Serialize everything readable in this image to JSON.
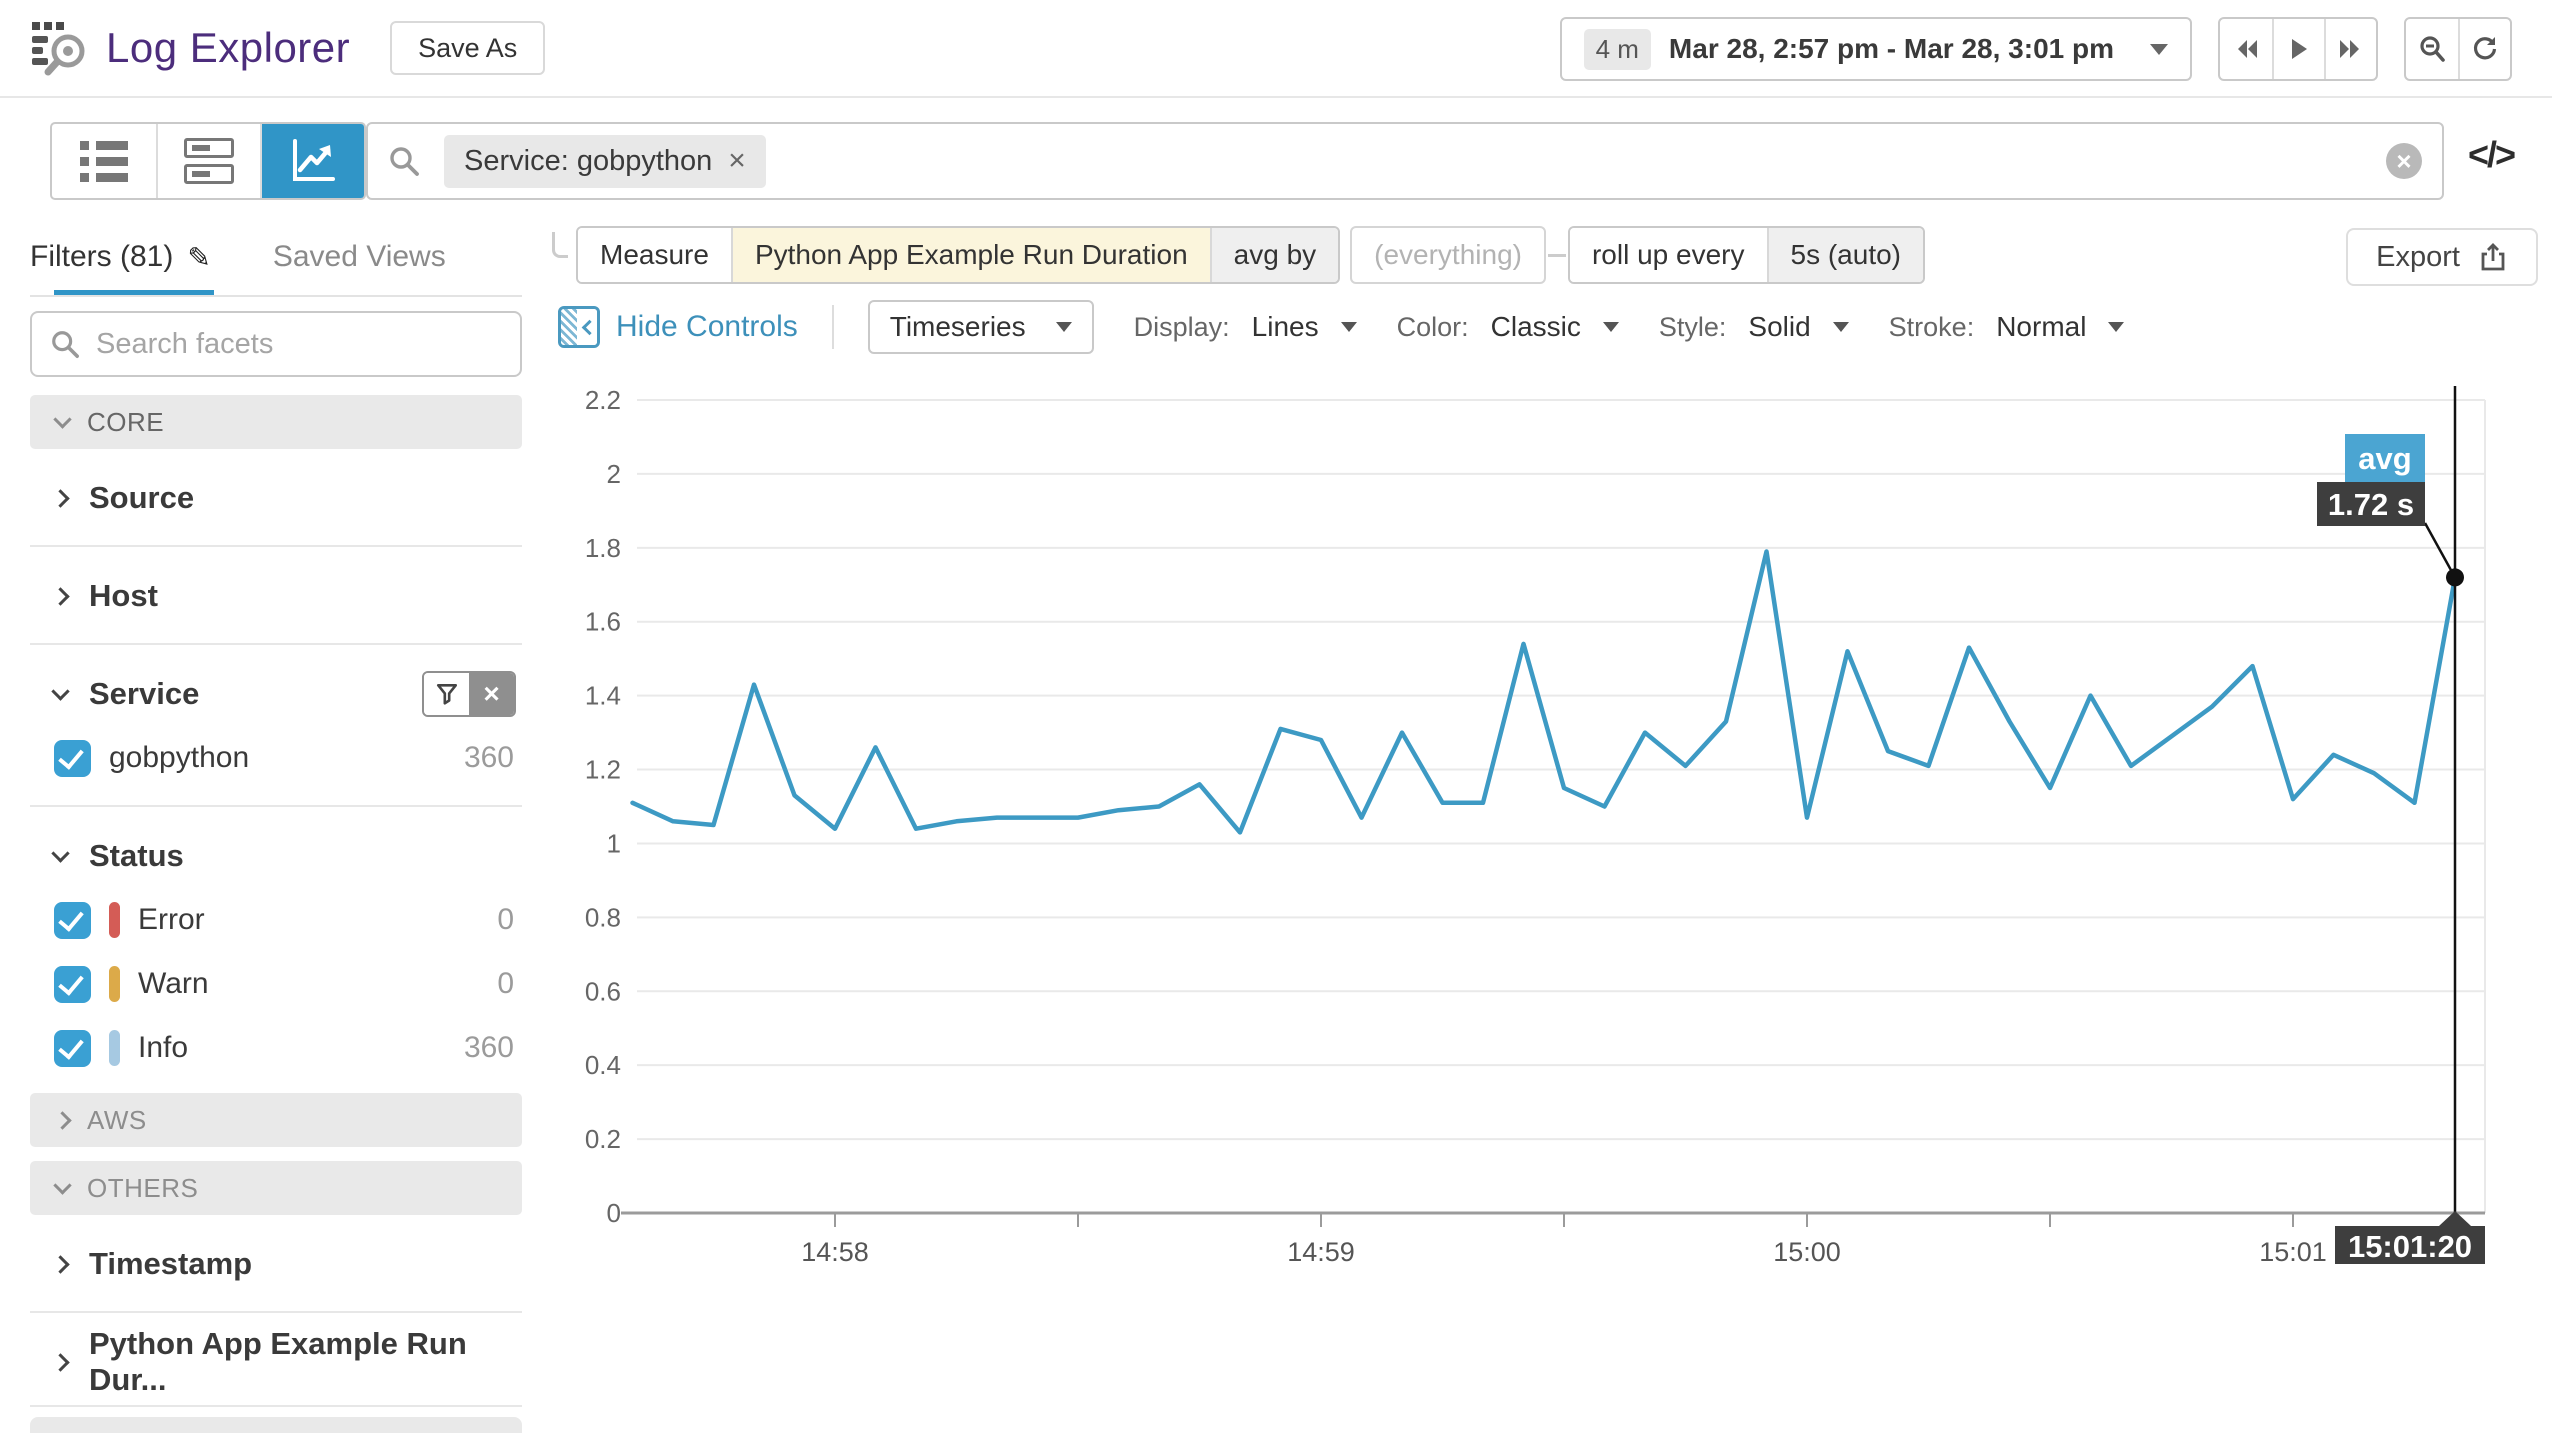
{
  "header": {
    "title": "Log Explorer",
    "save_as_label": "Save As",
    "time_range": {
      "duration_badge": "4 m",
      "range_label": "Mar 28, 2:57 pm - Mar 28, 3:01 pm"
    }
  },
  "search": {
    "filter_tag": "Service: gobpython",
    "remove_tag_icon": "×",
    "code_toggle": "</>"
  },
  "query_row": {
    "measure_label": "Measure",
    "measure_value": "Python App Example Run Duration",
    "agg_label": "avg by",
    "agg_value": "(everything)",
    "rollup_label": "roll up every",
    "rollup_value": "5s (auto)",
    "export_label": "Export"
  },
  "controls_row": {
    "hide_controls_label": "Hide Controls",
    "chart_type_value": "Timeseries",
    "display_label": "Display:",
    "display_value": "Lines",
    "color_label": "Color:",
    "color_value": "Classic",
    "style_label": "Style:",
    "style_value": "Solid",
    "stroke_label": "Stroke:",
    "stroke_value": "Normal"
  },
  "sidebar": {
    "tabs": {
      "filters_label": "Filters (81)",
      "saved_views_label": "Saved Views"
    },
    "facet_search_placeholder": "Search facets",
    "core_header": "CORE",
    "facets": {
      "source_label": "Source",
      "host_label": "Host",
      "service_label": "Service",
      "service_items": [
        {
          "label": "gobpython",
          "count": "360",
          "checked": true
        }
      ],
      "status_label": "Status",
      "status_items": [
        {
          "label": "Error",
          "count": "0",
          "color": "#d45c56",
          "checked": true
        },
        {
          "label": "Warn",
          "count": "0",
          "color": "#dcaa49",
          "checked": true
        },
        {
          "label": "Info",
          "count": "360",
          "color": "#a6c9e2",
          "checked": true
        }
      ],
      "aws_header": "AWS",
      "others_header": "OTHERS",
      "timestamp_label": "Timestamp",
      "duration_label": "Python App Example Run Dur..."
    }
  },
  "chart_data": {
    "type": "line",
    "series_name": "avg of Python App Example Run Duration",
    "unit": "s",
    "x_interval_seconds": 5,
    "x_times": [
      "14:57:35",
      "14:57:40",
      "14:57:45",
      "14:57:50",
      "14:57:55",
      "14:58:00",
      "14:58:05",
      "14:58:10",
      "14:58:15",
      "14:58:20",
      "14:58:25",
      "14:58:30",
      "14:58:35",
      "14:58:40",
      "14:58:45",
      "14:58:50",
      "14:58:55",
      "14:59:00",
      "14:59:05",
      "14:59:10",
      "14:59:15",
      "14:59:20",
      "14:59:25",
      "14:59:30",
      "14:59:35",
      "14:59:40",
      "14:59:45",
      "14:59:50",
      "14:59:55",
      "15:00:00",
      "15:00:05",
      "15:00:10",
      "15:00:15",
      "15:00:20",
      "15:00:25",
      "15:00:30",
      "15:00:35",
      "15:00:40",
      "15:00:45",
      "15:00:50",
      "15:00:55",
      "15:01:00",
      "15:01:05",
      "15:01:10",
      "15:01:15",
      "15:01:20"
    ],
    "values": [
      1.11,
      1.06,
      1.05,
      1.43,
      1.13,
      1.04,
      1.26,
      1.04,
      1.06,
      1.07,
      1.07,
      1.07,
      1.09,
      1.1,
      1.16,
      1.03,
      1.31,
      1.28,
      1.07,
      1.3,
      1.11,
      1.11,
      1.54,
      1.15,
      1.1,
      1.3,
      1.21,
      1.33,
      1.79,
      1.07,
      1.52,
      1.25,
      1.21,
      1.53,
      1.33,
      1.15,
      1.4,
      1.21,
      1.29,
      1.37,
      1.48,
      1.12,
      1.24,
      1.19,
      1.11,
      1.72
    ],
    "x_tick_labels": [
      "14:58",
      "14:59",
      "15:00",
      "15:01"
    ],
    "y_tick_labels": [
      "0",
      "0.2",
      "0.4",
      "0.6",
      "0.8",
      "1",
      "1.2",
      "1.4",
      "1.6",
      "1.8",
      "2",
      "2.2"
    ],
    "ylim": [
      0,
      2.2
    ],
    "grid": true,
    "legend": "none",
    "line_color": "#3d9ac4",
    "cursor": {
      "time_label": "15:01:20",
      "badge_label": "avg",
      "value_label": "1.72 s",
      "point_index": 45,
      "value": 1.72,
      "badge_color": "#4ba5d2",
      "box_color": "#3e3e3e"
    }
  }
}
